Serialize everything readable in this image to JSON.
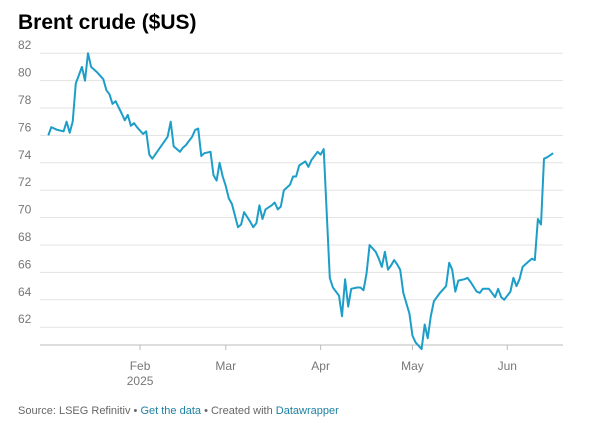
{
  "chart_data": {
    "type": "line",
    "title": "Brent crude ($US)",
    "x": [
      2,
      3,
      5,
      7,
      8,
      9,
      10,
      11,
      12,
      13,
      14,
      15,
      16,
      18,
      20,
      21,
      22,
      23,
      24,
      26,
      27,
      28,
      29,
      30,
      31,
      33,
      34,
      35,
      36,
      41,
      42,
      43,
      45,
      46,
      47,
      49,
      50,
      51,
      52,
      53,
      55,
      56,
      57,
      58,
      59,
      60,
      61,
      62,
      64,
      65,
      66,
      68,
      69,
      70,
      71,
      72,
      73,
      75,
      76,
      77,
      78,
      79,
      81,
      82,
      83,
      84,
      86,
      87,
      88,
      90,
      91,
      92,
      94,
      95,
      97,
      98,
      99,
      100,
      101,
      103,
      104,
      105,
      106,
      107,
      109,
      110,
      111,
      112,
      113,
      114,
      115,
      116,
      117,
      118,
      120,
      121,
      122,
      124,
      125,
      126,
      127,
      128,
      130,
      132,
      133,
      134,
      135,
      136,
      138,
      139,
      140,
      142,
      143,
      144,
      146,
      148,
      149,
      150,
      151,
      152,
      153,
      154,
      155,
      156,
      157,
      159,
      160,
      161,
      162,
      163,
      164,
      165,
      167
    ],
    "series": [
      {
        "name": "Brent crude",
        "color": "#1d9ec8",
        "values": [
          76.0,
          76.6,
          76.4,
          76.3,
          77.0,
          76.2,
          77.0,
          79.8,
          80.4,
          81.0,
          80.0,
          82.0,
          81.0,
          80.6,
          80.1,
          79.3,
          79.0,
          78.3,
          78.5,
          77.6,
          77.1,
          77.5,
          76.7,
          76.9,
          76.6,
          76.1,
          76.3,
          74.6,
          74.3,
          75.9,
          77.0,
          75.2,
          74.8,
          75.1,
          75.3,
          75.9,
          76.4,
          76.5,
          74.5,
          74.7,
          74.8,
          73.1,
          72.7,
          74.0,
          73.0,
          72.3,
          71.4,
          71.0,
          69.3,
          69.5,
          70.4,
          69.7,
          69.3,
          69.6,
          70.9,
          69.9,
          70.6,
          70.9,
          71.1,
          70.6,
          70.8,
          72.0,
          72.4,
          73.0,
          73.0,
          73.8,
          74.1,
          73.7,
          74.2,
          74.8,
          74.6,
          75.0,
          65.6,
          64.9,
          64.3,
          62.8,
          65.5,
          63.5,
          64.8,
          64.9,
          64.9,
          64.7,
          65.9,
          68.0,
          67.5,
          67.0,
          66.4,
          67.5,
          66.2,
          66.5,
          66.9,
          66.6,
          66.2,
          64.5,
          63.0,
          61.4,
          60.9,
          60.4,
          62.2,
          61.2,
          62.8,
          63.9,
          64.5,
          65.0,
          66.7,
          66.2,
          64.6,
          65.4,
          65.5,
          65.6,
          65.3,
          64.6,
          64.5,
          64.8,
          64.8,
          64.2,
          64.8,
          64.2,
          64.0,
          64.3,
          64.6,
          65.6,
          65.0,
          65.5,
          66.4,
          66.8,
          67.0,
          66.9,
          69.9,
          69.5,
          74.3,
          74.4,
          74.7
        ]
      }
    ],
    "xlim": [
      -0.7,
      170.2
    ],
    "xticks": [
      {
        "value": 32,
        "label": "Feb"
      },
      {
        "value": 60,
        "label": "Mar"
      },
      {
        "value": 91,
        "label": "Apr"
      },
      {
        "value": 121,
        "label": "May"
      },
      {
        "value": 152,
        "label": "Jun"
      }
    ],
    "x_year_label": "2025",
    "ylim": [
      60.7,
      82.6
    ],
    "yticks": [
      62,
      64,
      66,
      68,
      70,
      72,
      74,
      76,
      78,
      80,
      82
    ],
    "grid": true
  },
  "footer": {
    "source": "Source: LSEG Refinitiv",
    "sep1": " • ",
    "data_link": "Get the data",
    "sep2": " • ",
    "created": "Created with ",
    "dw_link": "Datawrapper"
  }
}
